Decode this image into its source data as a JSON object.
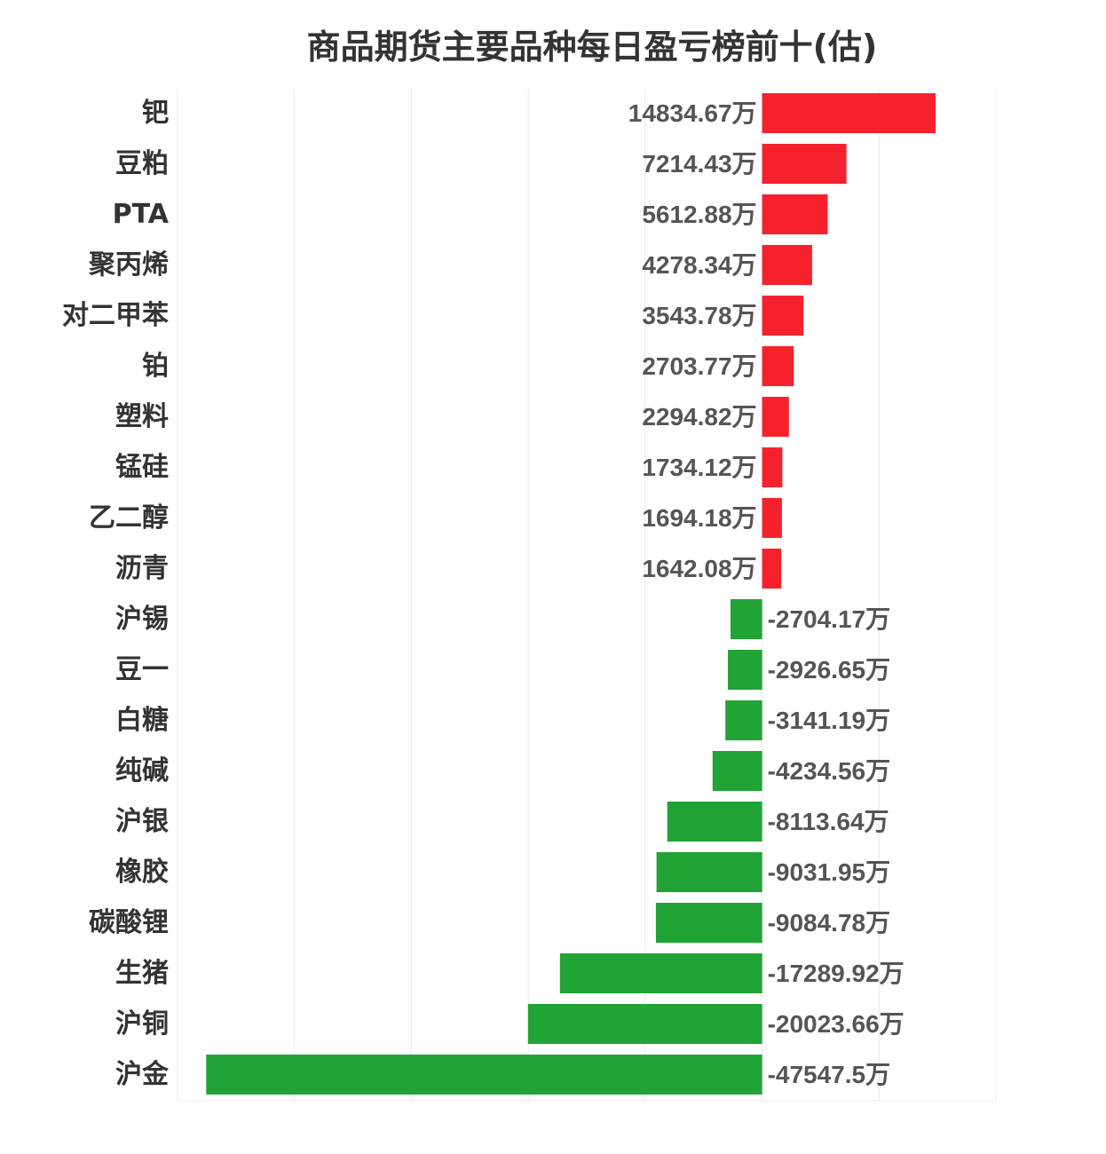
{
  "chart_data": {
    "type": "bar",
    "orientation": "horizontal",
    "title": "商品期货主要品种每日盈亏榜前十(估)",
    "unit": "万",
    "categories": [
      "钯",
      "豆粕",
      "PTA",
      "聚丙烯",
      "对二甲苯",
      "铂",
      "塑料",
      "锰硅",
      "乙二醇",
      "沥青",
      "沪锡",
      "豆一",
      "白糖",
      "纯碱",
      "沪银",
      "橡胶",
      "碳酸锂",
      "生猪",
      "沪铜",
      "沪金"
    ],
    "values": [
      14834.67,
      7214.43,
      5612.88,
      4278.34,
      3543.78,
      2703.77,
      2294.82,
      1734.12,
      1694.18,
      1642.08,
      -2704.17,
      -2926.65,
      -3141.19,
      -4234.56,
      -8113.64,
      -9031.95,
      -9084.78,
      -17289.92,
      -20023.66,
      -47547.5
    ],
    "labels": [
      "14834.67万",
      "7214.43万",
      "5612.88万",
      "4278.34万",
      "3543.78万",
      "2703.77万",
      "2294.82万",
      "1734.12万",
      "1694.18万",
      "1642.08万",
      "-2704.17万",
      "-2926.65万",
      "-3141.19万",
      "-4234.56万",
      "-8113.64万",
      "-9031.95万",
      "-9084.78万",
      "-17289.92万",
      "-20023.66万",
      "-47547.5万"
    ],
    "xlim": [
      -50000,
      20000
    ],
    "grid": true,
    "colors": {
      "positive": "#f5222d",
      "negative": "#21a336",
      "grid": "#e8e8e8",
      "label": "#555555",
      "category": "#333333"
    }
  }
}
